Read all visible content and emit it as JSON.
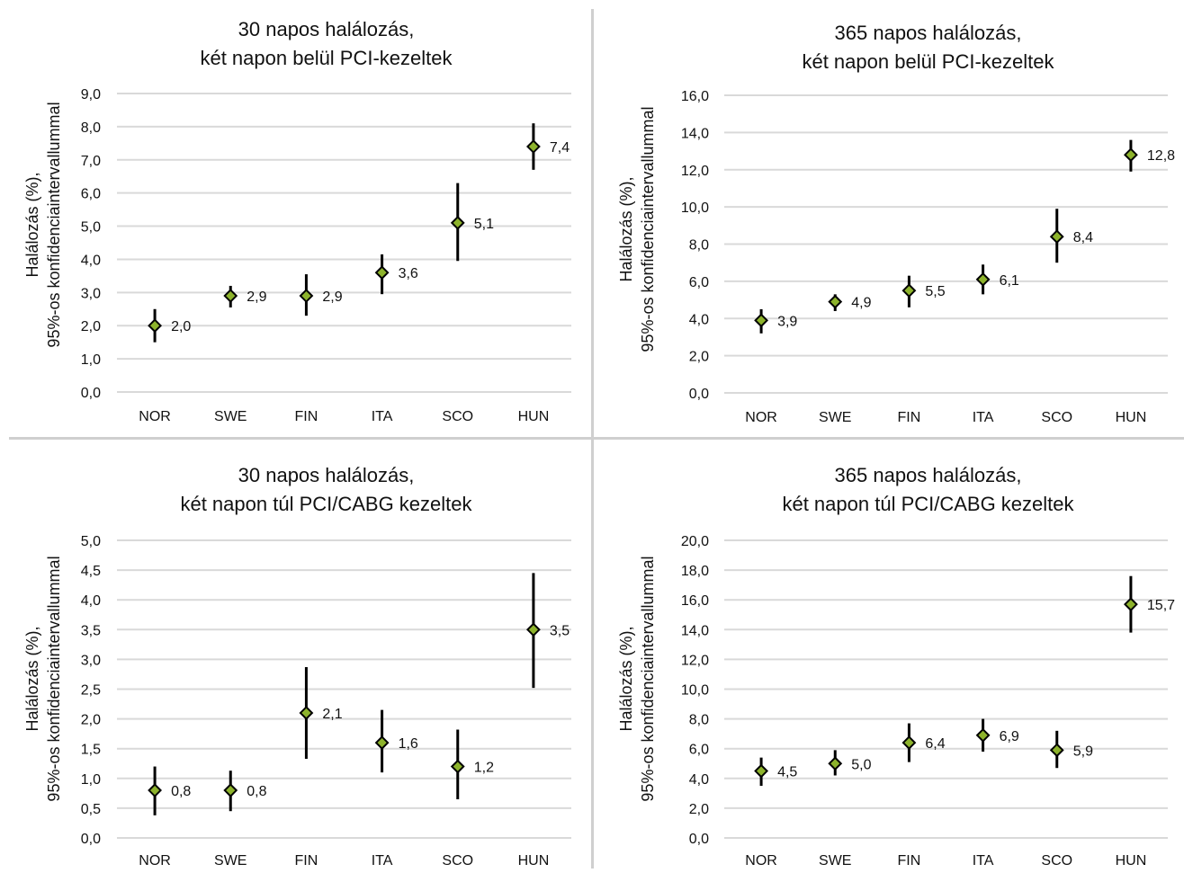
{
  "colors": {
    "marker_fill": "#8db32c",
    "marker_stroke": "#000000",
    "grid": "#d9d9d9",
    "divider": "#cfcfcf"
  },
  "chart_data": [
    {
      "type": "scatter",
      "title": [
        "30 napos halálozás,",
        "két napon belül PCI-kezeltek"
      ],
      "ylabel": [
        "Halálozás (%),",
        "95%-os konfidenciaintervallummal"
      ],
      "xlabel": "",
      "categories": [
        "NOR",
        "SWE",
        "FIN",
        "ITA",
        "SCO",
        "HUN"
      ],
      "values": [
        2.0,
        2.9,
        2.9,
        3.6,
        5.1,
        7.4
      ],
      "labels": [
        "2,0",
        "2,9",
        "2,9",
        "3,6",
        "5,1",
        "7,4"
      ],
      "ci_low": [
        1.5,
        2.55,
        2.3,
        2.95,
        3.95,
        6.7
      ],
      "ci_high": [
        2.5,
        3.2,
        3.55,
        4.15,
        6.3,
        8.1
      ],
      "ylim": [
        0,
        9
      ],
      "yticks": [
        "0,0",
        "1,0",
        "2,0",
        "3,0",
        "4,0",
        "5,0",
        "6,0",
        "7,0",
        "8,0",
        "9,0"
      ],
      "grid": true,
      "legend": "none"
    },
    {
      "type": "scatter",
      "title": [
        "365 napos halálozás,",
        "két napon belül PCI-kezeltek"
      ],
      "ylabel": [
        "Halálozás (%),",
        "95%-os konfidenciaintervallummal"
      ],
      "xlabel": "",
      "categories": [
        "NOR",
        "SWE",
        "FIN",
        "ITA",
        "SCO",
        "HUN"
      ],
      "values": [
        3.9,
        4.9,
        5.5,
        6.1,
        8.4,
        12.8
      ],
      "labels": [
        "3,9",
        "4,9",
        "5,5",
        "6,1",
        "8,4",
        "12,8"
      ],
      "ci_low": [
        3.2,
        4.4,
        4.6,
        5.3,
        7.0,
        11.9
      ],
      "ci_high": [
        4.5,
        5.3,
        6.3,
        6.9,
        9.9,
        13.6
      ],
      "ylim": [
        0,
        16
      ],
      "yticks": [
        "0,0",
        "2,0",
        "4,0",
        "6,0",
        "8,0",
        "10,0",
        "12,0",
        "14,0",
        "16,0"
      ],
      "grid": true,
      "legend": "none"
    },
    {
      "type": "scatter",
      "title": [
        "30 napos halálozás,",
        "két napon túl PCI/CABG kezeltek"
      ],
      "ylabel": [
        "Halálozás (%),",
        "95%-os konfidenciaintervallummal"
      ],
      "xlabel": "",
      "categories": [
        "NOR",
        "SWE",
        "FIN",
        "ITA",
        "SCO",
        "HUN"
      ],
      "values": [
        0.8,
        0.8,
        2.1,
        1.6,
        1.2,
        3.5
      ],
      "labels": [
        "0,8",
        "0,8",
        "2,1",
        "1,6",
        "1,2",
        "3,5"
      ],
      "ci_low": [
        0.38,
        0.45,
        1.33,
        1.1,
        0.65,
        2.52
      ],
      "ci_high": [
        1.2,
        1.13,
        2.87,
        2.15,
        1.82,
        4.45
      ],
      "ylim": [
        0,
        5
      ],
      "yticks": [
        "0,0",
        "0,5",
        "1,0",
        "1,5",
        "2,0",
        "2,5",
        "3,0",
        "3,5",
        "4,0",
        "4,5",
        "5,0"
      ],
      "grid": true,
      "legend": "none"
    },
    {
      "type": "scatter",
      "title": [
        "365 napos halálozás,",
        "két napon túl PCI/CABG kezeltek"
      ],
      "ylabel": [
        "Halálozás (%),",
        "95%-os konfidenciaintervallummal"
      ],
      "xlabel": "",
      "categories": [
        "NOR",
        "SWE",
        "FIN",
        "ITA",
        "SCO",
        "HUN"
      ],
      "values": [
        4.5,
        5.0,
        6.4,
        6.9,
        5.9,
        15.7
      ],
      "labels": [
        "4,5",
        "5,0",
        "6,4",
        "6,9",
        "5,9",
        "15,7"
      ],
      "ci_low": [
        3.5,
        4.2,
        5.1,
        5.8,
        4.7,
        13.8
      ],
      "ci_high": [
        5.4,
        5.9,
        7.7,
        8.0,
        7.2,
        17.6
      ],
      "ylim": [
        0,
        20
      ],
      "yticks": [
        "0,0",
        "2,0",
        "4,0",
        "6,0",
        "8,0",
        "10,0",
        "12,0",
        "14,0",
        "16,0",
        "18,0",
        "20,0"
      ],
      "grid": true,
      "legend": "none"
    }
  ]
}
